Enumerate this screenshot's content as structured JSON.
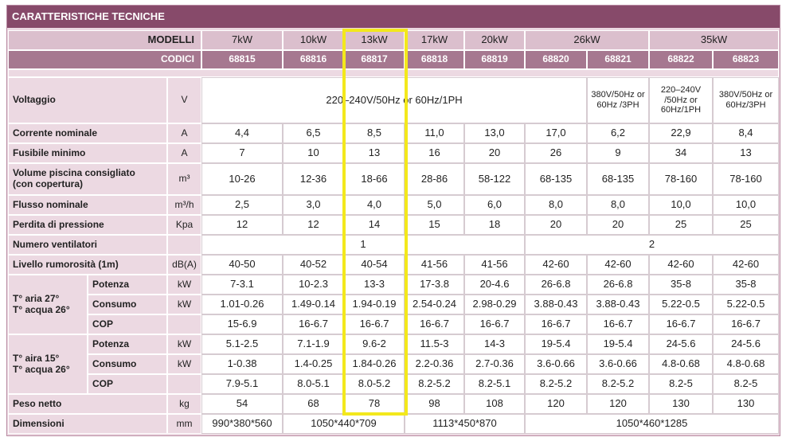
{
  "title": "CARATTERISTICHE TECNICHE",
  "header": {
    "models_label": "MODELLI",
    "models": [
      "7kW",
      "10kW",
      "13kW",
      "17kW",
      "20kW",
      "26kW",
      "35kW"
    ],
    "codes_label": "CODICI",
    "codes": [
      "68815",
      "68816",
      "68817",
      "68818",
      "68819",
      "68820",
      "68821",
      "68822",
      "68823"
    ]
  },
  "rows": [
    {
      "label": [
        "Voltaggio"
      ],
      "unit": "V",
      "cells": [
        "220–240V/50Hz or 60Hz/1PH",
        "380V/50Hz or 60Hz /3PH",
        "220–240V /50Hz or 60Hz/1PH",
        "380V/50Hz or 60Hz/3PH"
      ]
    },
    {
      "label": [
        "Corrente nominale"
      ],
      "unit": "A",
      "cells": [
        "4,4",
        "6,5",
        "8,5",
        "11,0",
        "13,0",
        "17,0",
        "6,2",
        "22,9",
        "8,4"
      ]
    },
    {
      "label": [
        "Fusibile minimo"
      ],
      "unit": "A",
      "cells": [
        "7",
        "10",
        "13",
        "16",
        "20",
        "26",
        "9",
        "34",
        "13"
      ]
    },
    {
      "label": [
        "Volume piscina consigliato",
        "(con copertura)"
      ],
      "unit": "m³",
      "cells": [
        "10-26",
        "12-36",
        "18-66",
        "28-86",
        "58-122",
        "68-135",
        "68-135",
        "78-160",
        "78-160"
      ]
    },
    {
      "label": [
        "Flusso nominale"
      ],
      "unit": "m³/h",
      "cells": [
        "2,5",
        "3,0",
        "4,0",
        "5,0",
        "6,0",
        "8,0",
        "8,0",
        "10,0",
        "10,0"
      ]
    },
    {
      "label": [
        "Perdita di pressione"
      ],
      "unit": "Kpa",
      "cells": [
        "12",
        "12",
        "14",
        "15",
        "18",
        "20",
        "20",
        "25",
        "25"
      ]
    },
    {
      "label": [
        "Numero ventilatori"
      ],
      "cells": [
        "1",
        "2"
      ]
    },
    {
      "label": [
        "Livello rumorosità (1m)"
      ],
      "unit": "dB(A)",
      "cells": [
        "40-50",
        "40-52",
        "40-54",
        "41-56",
        "41-56",
        "42-60",
        "42-60",
        "42-60",
        "42-60"
      ]
    },
    {
      "label": [
        "T° aria 27°",
        "T° acqua 26°"
      ],
      "items": [
        {
          "label": "Potenza",
          "unit": "kW",
          "cells": [
            "7-3.1",
            "10-2.3",
            "13-3",
            "17-3.8",
            "20-4.6",
            "26-6.8",
            "26-6.8",
            "35-8",
            "35-8"
          ]
        },
        {
          "label": "Consumo",
          "unit": "kW",
          "cells": [
            "1.01-0.26",
            "1.49-0.14",
            "1.94-0.19",
            "2.54-0.24",
            "2.98-0.29",
            "3.88-0.43",
            "3.88-0.43",
            "5.22-0.5",
            "5.22-0.5"
          ]
        },
        {
          "label": "COP",
          "cells": [
            "15-6.9",
            "16-6.7",
            "16-6.7",
            "16-6.7",
            "16-6.7",
            "16-6.7",
            "16-6.7",
            "16-6.7",
            "16-6.7"
          ]
        }
      ]
    },
    {
      "label": [
        "T° aira 15°",
        "T° acqua 26°"
      ],
      "items": [
        {
          "label": "Potenza",
          "unit": "kW",
          "cells": [
            "5.1-2.5",
            "7.1-1.9",
            "9.6-2",
            "11.5-3",
            "14-3",
            "19-5.4",
            "19-5.4",
            "24-5.6",
            "24-5.6"
          ]
        },
        {
          "label": "Consumo",
          "unit": "kW",
          "cells": [
            "1-0.38",
            "1.4-0.25",
            "1.84-0.26",
            "2.2-0.36",
            "2.7-0.36",
            "3.6-0.66",
            "3.6-0.66",
            "4.8-0.68",
            "4.8-0.68"
          ]
        },
        {
          "label": "COP",
          "cells": [
            "7.9-5.1",
            "8.0-5.1",
            "8.0-5.2",
            "8.2-5.2",
            "8.2-5.1",
            "8.2-5.2",
            "8.2-5.2",
            "8.2-5",
            "8.2-5"
          ]
        }
      ]
    },
    {
      "label": [
        "Peso netto"
      ],
      "unit": "kg",
      "cells": [
        "54",
        "68",
        "78",
        "98",
        "108",
        "120",
        "120",
        "130",
        "130"
      ]
    },
    {
      "label": [
        "Dimensioni"
      ],
      "unit": "mm",
      "cells": [
        "990*380*560",
        "1050*440*709",
        "1113*450*870",
        "1050*460*1285"
      ]
    }
  ]
}
